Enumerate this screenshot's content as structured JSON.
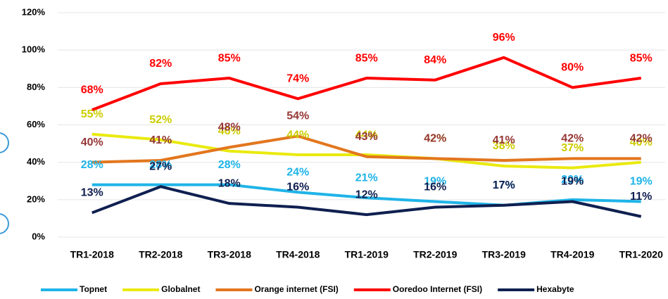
{
  "chart_data": {
    "type": "line",
    "categories": [
      "TR1-2018",
      "TR2-2018",
      "TR3-2018",
      "TR4-2018",
      "TR1-2019",
      "TR2-2019",
      "TR3-2019",
      "TR4-2019",
      "TR1-2020"
    ],
    "series": [
      {
        "name": "Topnet",
        "color": "#1fb4e8",
        "label_color": "#1fb4e8",
        "values": [
          28,
          28,
          28,
          24,
          21,
          19,
          17,
          20,
          19
        ],
        "value_labels": [
          "28%",
          "28%",
          "28%",
          "24%",
          "21%",
          "19%",
          "17%",
          "20%",
          "19%"
        ]
      },
      {
        "name": "Globalnet",
        "color": "#eaea10",
        "label_color": "#cccc00",
        "values": [
          55,
          52,
          46,
          44,
          44,
          42,
          38,
          37,
          40
        ],
        "value_labels": [
          "55%",
          "52%",
          "46%",
          "44%",
          "44%",
          "42%",
          "38%",
          "37%",
          "40%"
        ]
      },
      {
        "name": "Orange internet (FSI)",
        "color": "#e2761e",
        "label_color": "#953735",
        "values": [
          40,
          41,
          48,
          54,
          43,
          42,
          41,
          42,
          42
        ],
        "value_labels": [
          "40%",
          "41%",
          "48%",
          "54%",
          "43%",
          "42%",
          "41%",
          "42%",
          "42%"
        ]
      },
      {
        "name": "Ooredoo Internet (FSI)",
        "color": "#ff0000",
        "label_color": "#ff0000",
        "values": [
          68,
          82,
          85,
          74,
          85,
          84,
          96,
          80,
          85
        ],
        "value_labels": [
          "68%",
          "82%",
          "85%",
          "74%",
          "85%",
          "84%",
          "96%",
          "80%",
          "85%"
        ]
      },
      {
        "name": "Hexabyte",
        "color": "#0f1f50",
        "label_color": "#0f1f50",
        "values": [
          13,
          27,
          18,
          16,
          12,
          16,
          17,
          19,
          11
        ],
        "value_labels": [
          "13%",
          "27%",
          "18%",
          "16%",
          "12%",
          "16%",
          "17%",
          "19%",
          "11%"
        ]
      }
    ],
    "ylim": [
      0,
      120
    ],
    "yticks": [
      {
        "value": 0,
        "label": "0%"
      },
      {
        "value": 20,
        "label": "20%"
      },
      {
        "value": 40,
        "label": "40%"
      },
      {
        "value": 60,
        "label": "60%"
      },
      {
        "value": 80,
        "label": "80%"
      },
      {
        "value": 100,
        "label": "100%"
      },
      {
        "value": 120,
        "label": "120%"
      }
    ],
    "grid": true
  }
}
